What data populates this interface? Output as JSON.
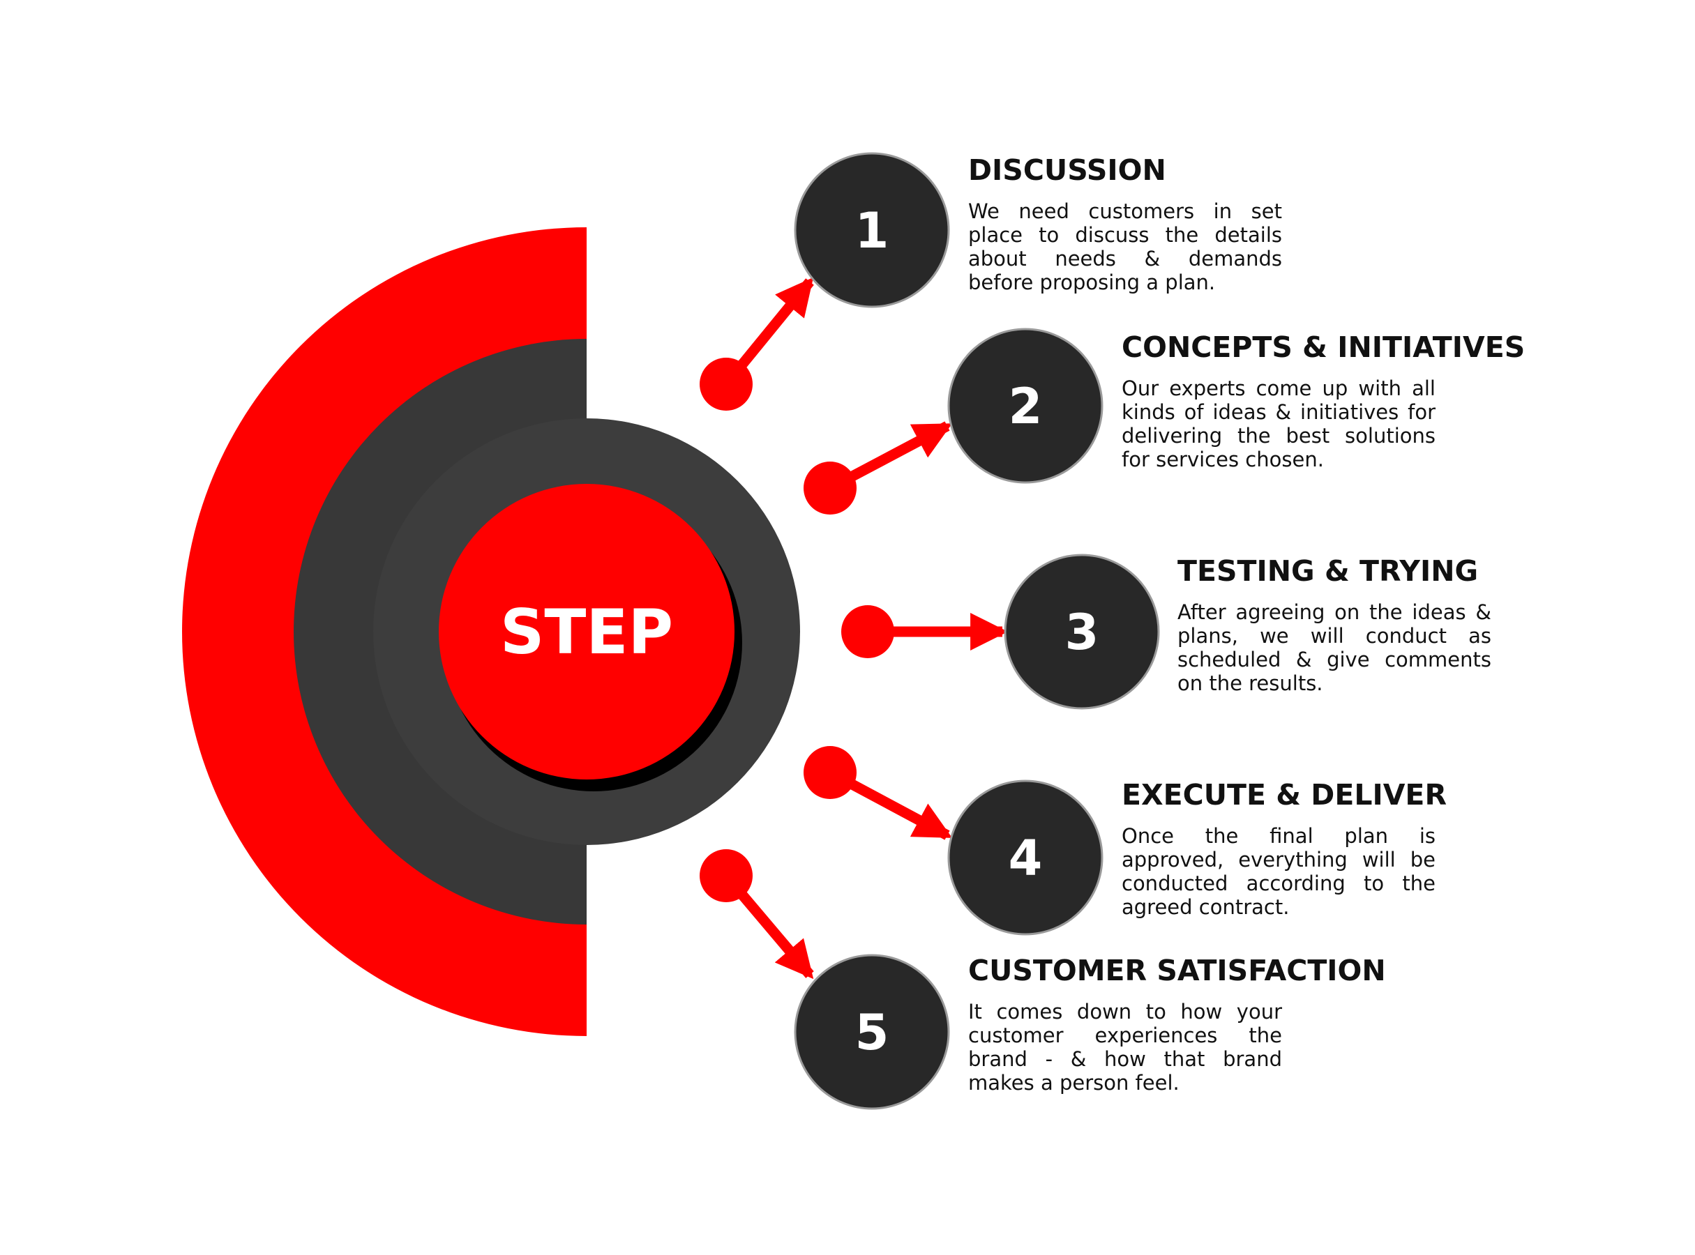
{
  "center": {
    "label": "STEP"
  },
  "colors": {
    "accent": "#ff0000",
    "dark": "#282828",
    "mid_ring": "#3a3a3a",
    "text": "#111111"
  },
  "steps": [
    {
      "number": "1",
      "title": "DISCUSSION",
      "description": "We need customers in set place to discuss the details about needs & demands before proposing a plan."
    },
    {
      "number": "2",
      "title": "CONCEPTS & INITIATIVES",
      "description": "Our experts come up with all kinds of ideas & initiatives for delivering the best solutions for services chosen."
    },
    {
      "number": "3",
      "title": "TESTING & TRYING",
      "description": "After agreeing on the ideas & plans, we will conduct as scheduled & give comments on the results."
    },
    {
      "number": "4",
      "title": "EXECUTE & DELIVER",
      "description": "Once the final plan is approved, everything will be conducted according to the agreed contract."
    },
    {
      "number": "5",
      "title": "CUSTOMER SATISFACTION",
      "description": "It comes down to how your customer experiences the brand - & how that brand makes a person feel."
    }
  ]
}
